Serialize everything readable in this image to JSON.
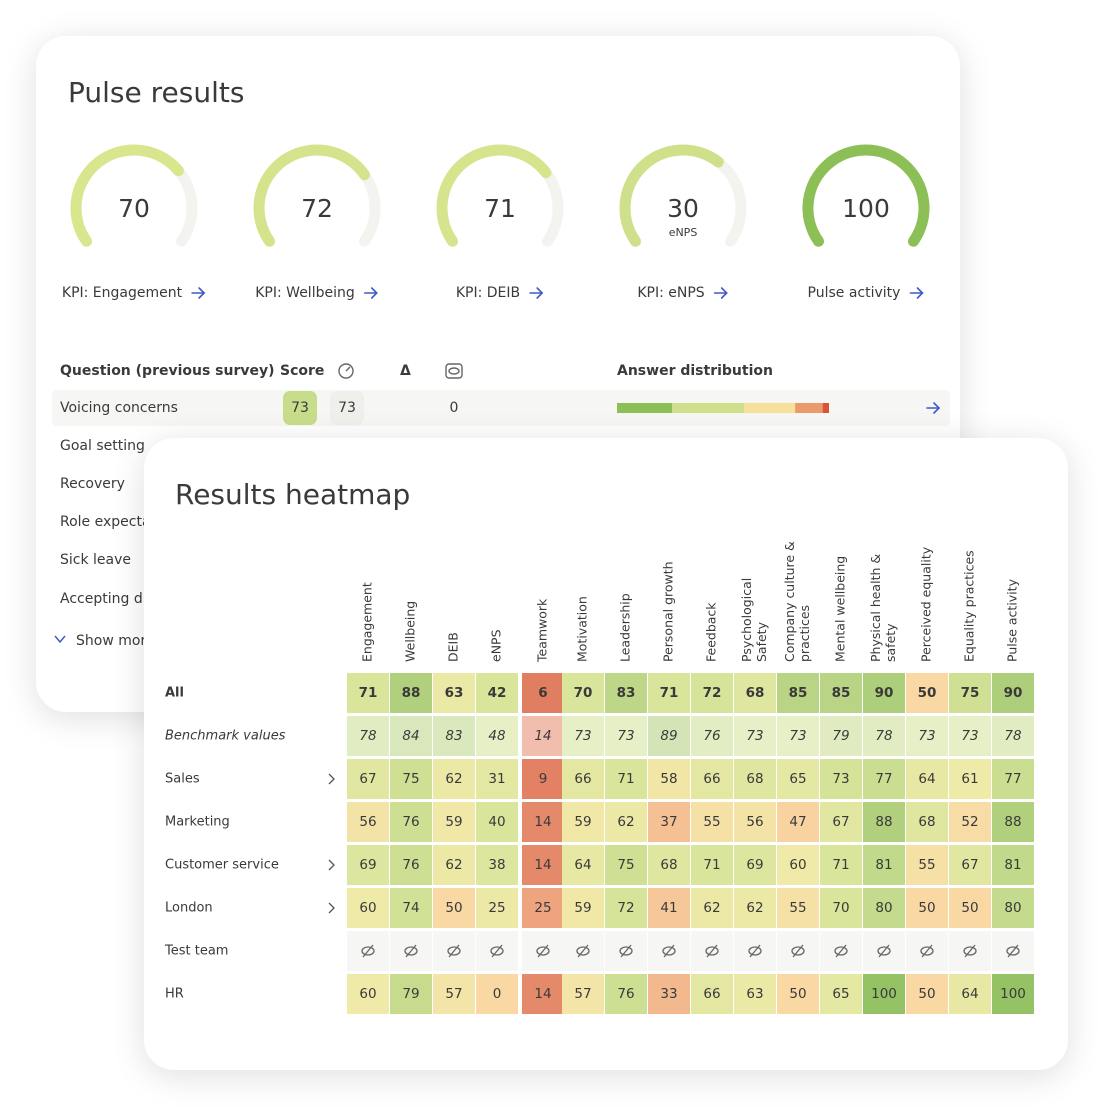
{
  "pulse_results": {
    "title": "Pulse results",
    "gauges": [
      {
        "value": 70,
        "range": [
          0,
          100
        ],
        "color": "#d9e68e",
        "label": "KPI: Engagement"
      },
      {
        "value": 72,
        "range": [
          0,
          100
        ],
        "color": "#d4e38c",
        "label": "KPI: Wellbeing"
      },
      {
        "value": 71,
        "range": [
          0,
          100
        ],
        "color": "#d6e48d",
        "label": "KPI: DEIB"
      },
      {
        "value": 30,
        "range": [
          -100,
          100
        ],
        "color": "#cfe08a",
        "sublabel": "eNPS",
        "label": "KPI: eNPS"
      },
      {
        "value": 100,
        "range": [
          0,
          100
        ],
        "color": "#8cbf55",
        "label": "Pulse activity"
      }
    ],
    "table": {
      "headers": [
        "Question (previous survey)",
        "Score",
        "Δ",
        "Answer distribution"
      ],
      "rows": [
        {
          "question": "Voicing concerns",
          "score": 73,
          "previous": 73,
          "delta": 0,
          "distribution": [
            {
              "value": 26,
              "color": "#8cbf55"
            },
            {
              "value": 34,
              "color": "#cfe08a"
            },
            {
              "value": 24,
              "color": "#f7e19a"
            },
            {
              "value": 13,
              "color": "#eb9a6c"
            },
            {
              "value": 3,
              "color": "#d9553a"
            }
          ]
        },
        {
          "question": "Goal setting"
        },
        {
          "question": "Recovery"
        },
        {
          "question": "Role expecta"
        },
        {
          "question": "Sick leave"
        },
        {
          "question": "Accepting di"
        }
      ],
      "show_more": "Show mor"
    }
  },
  "heatmap": {
    "title": "Results heatmap",
    "columns": [
      {
        "lines": [
          "Engagement"
        ]
      },
      {
        "lines": [
          "Wellbeing"
        ]
      },
      {
        "lines": [
          "DEIB"
        ]
      },
      {
        "lines": [
          "eNPS"
        ],
        "range": [
          -100,
          100
        ]
      },
      {
        "lines": [
          "Teamwork"
        ]
      },
      {
        "lines": [
          "Motivation"
        ]
      },
      {
        "lines": [
          "Leadership"
        ]
      },
      {
        "lines": [
          "Personal growth"
        ]
      },
      {
        "lines": [
          "Feedback"
        ]
      },
      {
        "lines": [
          "Psychological",
          "Safety"
        ]
      },
      {
        "lines": [
          "Company culture &",
          "practices"
        ]
      },
      {
        "lines": [
          "Mental wellbeing"
        ]
      },
      {
        "lines": [
          "Physical health &",
          "safety"
        ]
      },
      {
        "lines": [
          "Perceived equality"
        ]
      },
      {
        "lines": [
          "Equality practices"
        ]
      },
      {
        "lines": [
          "Pulse activity"
        ]
      }
    ],
    "rows": [
      {
        "label": "All",
        "bold": true,
        "values": [
          71,
          88,
          63,
          42,
          6,
          70,
          83,
          71,
          72,
          68,
          85,
          85,
          90,
          50,
          75,
          90
        ]
      },
      {
        "label": "Benchmark values",
        "italic": true,
        "values": [
          78,
          84,
          83,
          48,
          14,
          73,
          73,
          89,
          76,
          73,
          73,
          79,
          78,
          73,
          73,
          78
        ]
      },
      {
        "label": "Sales",
        "expandable": true,
        "values": [
          67,
          75,
          62,
          31,
          9,
          66,
          71,
          58,
          66,
          68,
          65,
          73,
          77,
          64,
          61,
          77
        ]
      },
      {
        "label": "Marketing",
        "values": [
          56,
          76,
          59,
          40,
          14,
          59,
          62,
          37,
          55,
          56,
          47,
          67,
          88,
          68,
          52,
          88
        ]
      },
      {
        "label": "Customer service",
        "expandable": true,
        "values": [
          69,
          76,
          62,
          38,
          14,
          64,
          75,
          68,
          71,
          69,
          60,
          71,
          81,
          55,
          67,
          81
        ]
      },
      {
        "label": "London",
        "expandable": true,
        "values": [
          60,
          74,
          50,
          25,
          25,
          59,
          72,
          41,
          62,
          62,
          55,
          70,
          80,
          50,
          50,
          80
        ]
      },
      {
        "label": "Test team",
        "values": [
          null,
          null,
          null,
          null,
          null,
          null,
          null,
          null,
          null,
          null,
          null,
          null,
          null,
          null,
          null,
          null
        ]
      },
      {
        "label": "HR",
        "values": [
          60,
          79,
          57,
          0,
          14,
          57,
          76,
          33,
          66,
          63,
          50,
          65,
          100,
          50,
          64,
          100
        ]
      }
    ]
  }
}
